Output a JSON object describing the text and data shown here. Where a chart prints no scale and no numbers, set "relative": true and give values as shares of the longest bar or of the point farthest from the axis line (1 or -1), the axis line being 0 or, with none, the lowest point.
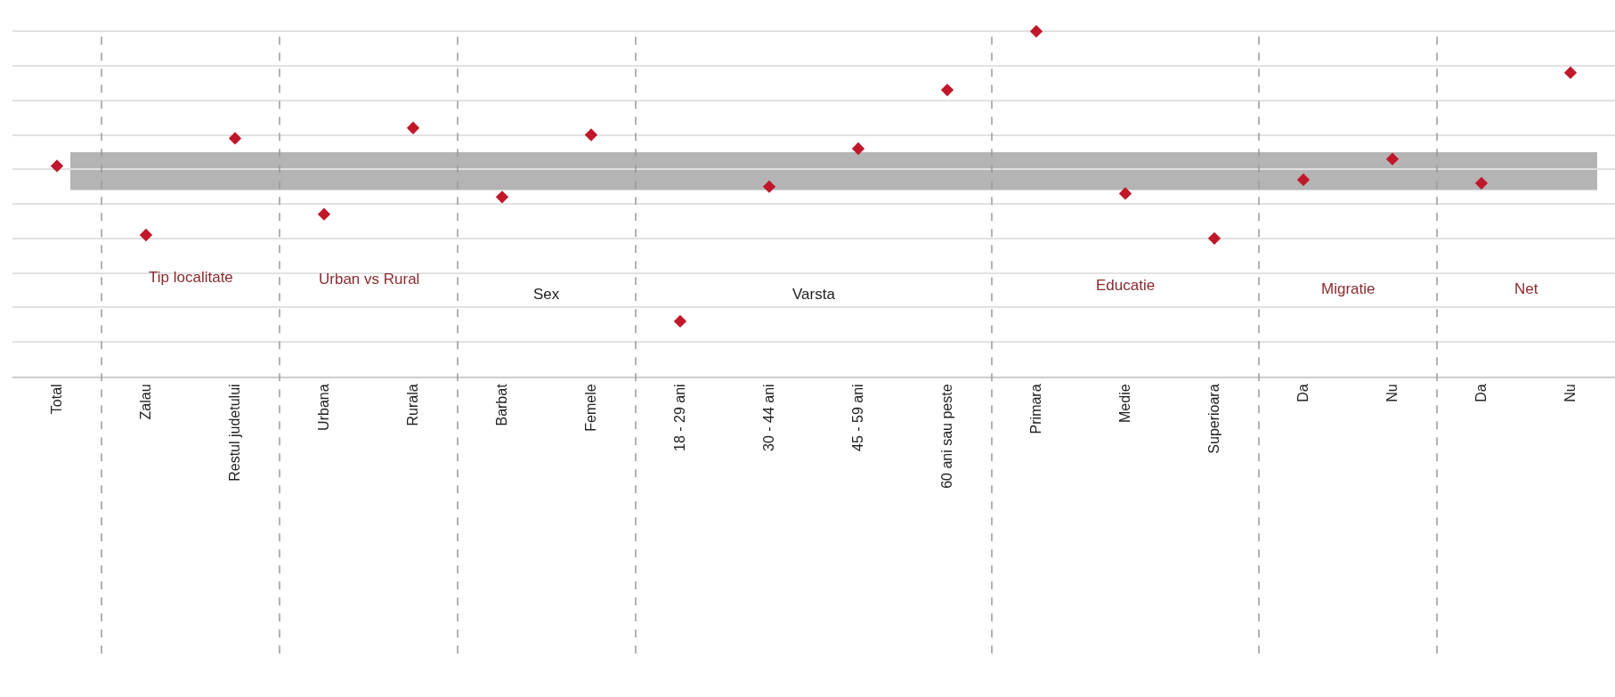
{
  "chart_data": {
    "type": "scatter",
    "relative": true,
    "marker": "diamond",
    "grid": "y",
    "categories": [
      "Total",
      "Zalau",
      "Restul judetului",
      "Urbana",
      "Rurala",
      "Barbat",
      "Femele",
      "18 - 29 ani",
      "30 - 44 ani",
      "45 - 59 ani",
      "60 ani sau peste",
      "Primara",
      "Medie",
      "Superioara",
      "Da",
      "Nu",
      "Da",
      "Nu"
    ],
    "series": [
      {
        "color": "#c0182a",
        "values": [
          0.61,
          0.41,
          0.69,
          0.47,
          0.72,
          0.52,
          0.7,
          0.16,
          0.55,
          0.66,
          0.83,
          1,
          0.53,
          0.4,
          0.57,
          0.63,
          0.56,
          0.88
        ]
      }
    ],
    "bands": [
      {
        "axis": "y",
        "from": 0.54,
        "to": 0.65,
        "color": "#b4b4b4"
      }
    ],
    "annotations": [
      "Tip localitate",
      "Urban vs Rural",
      "Sex",
      "Varsta",
      "Educatie",
      "Migratie",
      "Net"
    ]
  }
}
